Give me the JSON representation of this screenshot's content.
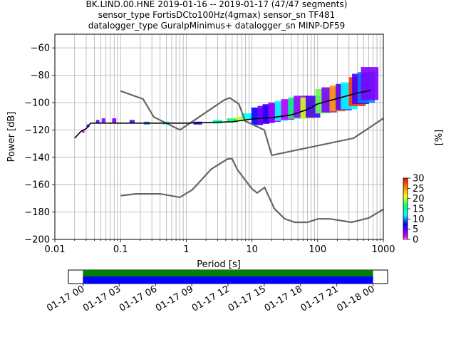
{
  "chart_data": {
    "type": "heatmap",
    "title_lines": [
      "BK.LIND.00.HNE   2019-01-16 -- 2019-01-17  (47/47 segments)",
      "sensor_type FortisDCto100Hz(4gmax) sensor_sn TF481",
      "datalogger_type GuralpMinimus+ datalogger_sn MINP-DF59"
    ],
    "xlabel": "Period [s]",
    "ylabel": "Power [dB]",
    "xscale": "log",
    "xlim": [
      0.01,
      1000
    ],
    "ylim": [
      -200,
      -50
    ],
    "xticks": [
      {
        "v": 0.01,
        "label": "0.01"
      },
      {
        "v": 0.1,
        "label": "0.1"
      },
      {
        "v": 1,
        "label": "1"
      },
      {
        "v": 10,
        "label": "10"
      },
      {
        "v": 100,
        "label": "100"
      },
      {
        "v": 1000,
        "label": "1000"
      }
    ],
    "yticks": [
      {
        "v": -60,
        "label": "−60"
      },
      {
        "v": -80,
        "label": "−80"
      },
      {
        "v": -100,
        "label": "−100"
      },
      {
        "v": -120,
        "label": "−120"
      },
      {
        "v": -140,
        "label": "−140"
      },
      {
        "v": -160,
        "label": "−160"
      },
      {
        "v": -180,
        "label": "−180"
      },
      {
        "v": -200,
        "label": "−200"
      }
    ],
    "grid": true,
    "colorbar": {
      "label": "[%]",
      "range": [
        0,
        30
      ],
      "ticks": [
        {
          "v": 0,
          "label": "0"
        },
        {
          "v": 5,
          "label": "5"
        },
        {
          "v": 10,
          "label": "10"
        },
        {
          "v": 15,
          "label": "15"
        },
        {
          "v": 20,
          "label": "20"
        },
        {
          "v": 25,
          "label": "25"
        },
        {
          "v": 30,
          "label": "30"
        }
      ]
    },
    "noise_model_high": [
      [
        0.1,
        -91.5
      ],
      [
        0.22,
        -97.4
      ],
      [
        0.32,
        -110.5
      ],
      [
        0.8,
        -120
      ],
      [
        3.8,
        -98
      ],
      [
        4.6,
        -96.5
      ],
      [
        6.3,
        -101
      ],
      [
        7.9,
        -113.5
      ],
      [
        15.4,
        -120
      ],
      [
        20,
        -138.5
      ],
      [
        354,
        -126
      ],
      [
        1000,
        -111.5
      ]
    ],
    "noise_model_low": [
      [
        0.1,
        -168
      ],
      [
        0.17,
        -166.7
      ],
      [
        0.4,
        -166.7
      ],
      [
        0.8,
        -169.2
      ],
      [
        1.24,
        -163.7
      ],
      [
        2.4,
        -148.6
      ],
      [
        4.3,
        -141.1
      ],
      [
        5,
        -141.1
      ],
      [
        6,
        -149
      ],
      [
        10,
        -163
      ],
      [
        12,
        -166
      ],
      [
        15.6,
        -162
      ],
      [
        21.9,
        -177.5
      ],
      [
        31.6,
        -185
      ],
      [
        45,
        -187.5
      ],
      [
        70,
        -187.5
      ],
      [
        101,
        -185
      ],
      [
        154,
        -185
      ],
      [
        328,
        -187.5
      ],
      [
        600,
        -184.4
      ],
      [
        1000,
        -178
      ]
    ],
    "mean_psd": [
      [
        0.02,
        -126
      ],
      [
        0.025,
        -121
      ],
      [
        0.03,
        -119
      ],
      [
        0.035,
        -115
      ],
      [
        0.06,
        -115
      ],
      [
        0.1,
        -115
      ],
      [
        1,
        -115
      ],
      [
        5,
        -114
      ],
      [
        10,
        -112
      ],
      [
        20,
        -111
      ],
      [
        40,
        -109
      ],
      [
        70,
        -105
      ],
      [
        100,
        -101
      ],
      [
        200,
        -97
      ],
      [
        400,
        -93
      ],
      [
        650,
        -91
      ]
    ],
    "density": [
      [
        0.027,
        -121,
        2
      ],
      [
        0.032,
        -117,
        5
      ],
      [
        0.045,
        -114,
        6
      ],
      [
        0.055,
        -113,
        4
      ],
      [
        0.08,
        -113,
        4
      ],
      [
        0.15,
        -114,
        6
      ],
      [
        0.25,
        -115,
        10
      ],
      [
        0.5,
        -115,
        12
      ],
      [
        1.5,
        -115,
        7
      ],
      [
        3,
        -114,
        14
      ],
      [
        5,
        -113,
        16
      ],
      [
        7,
        -112,
        20
      ],
      [
        8.5,
        -110,
        12
      ],
      [
        12,
        -110,
        8
      ],
      [
        15,
        -109,
        4
      ],
      [
        18,
        -108,
        7
      ],
      [
        22,
        -107,
        3
      ],
      [
        28,
        -106,
        12
      ],
      [
        35,
        -105,
        2
      ],
      [
        45,
        -104,
        16
      ],
      [
        55,
        -103,
        3
      ],
      [
        70,
        -104,
        20
      ],
      [
        85,
        -103,
        6
      ],
      [
        120,
        -99,
        18
      ],
      [
        150,
        -98,
        4
      ],
      [
        200,
        -97,
        24
      ],
      [
        250,
        -96,
        5
      ],
      [
        300,
        -95,
        12
      ],
      [
        400,
        -92,
        28
      ],
      [
        450,
        -90,
        6
      ],
      [
        550,
        -89,
        10
      ],
      [
        620,
        -86,
        4
      ]
    ]
  },
  "availability": {
    "tick_labels": [
      "01-17 00",
      "01-17 03",
      "01-17 06",
      "01-17 09",
      "01-17 12",
      "01-17 15",
      "01-17 18",
      "01-17 21",
      "01-18 00"
    ],
    "segments_start_hours": 0,
    "segments_end_hours": 24,
    "axis_start_hours": -1.2,
    "axis_end_hours": 25.2,
    "colors": {
      "segments": "#008000",
      "coverage": "#0000ff"
    }
  }
}
